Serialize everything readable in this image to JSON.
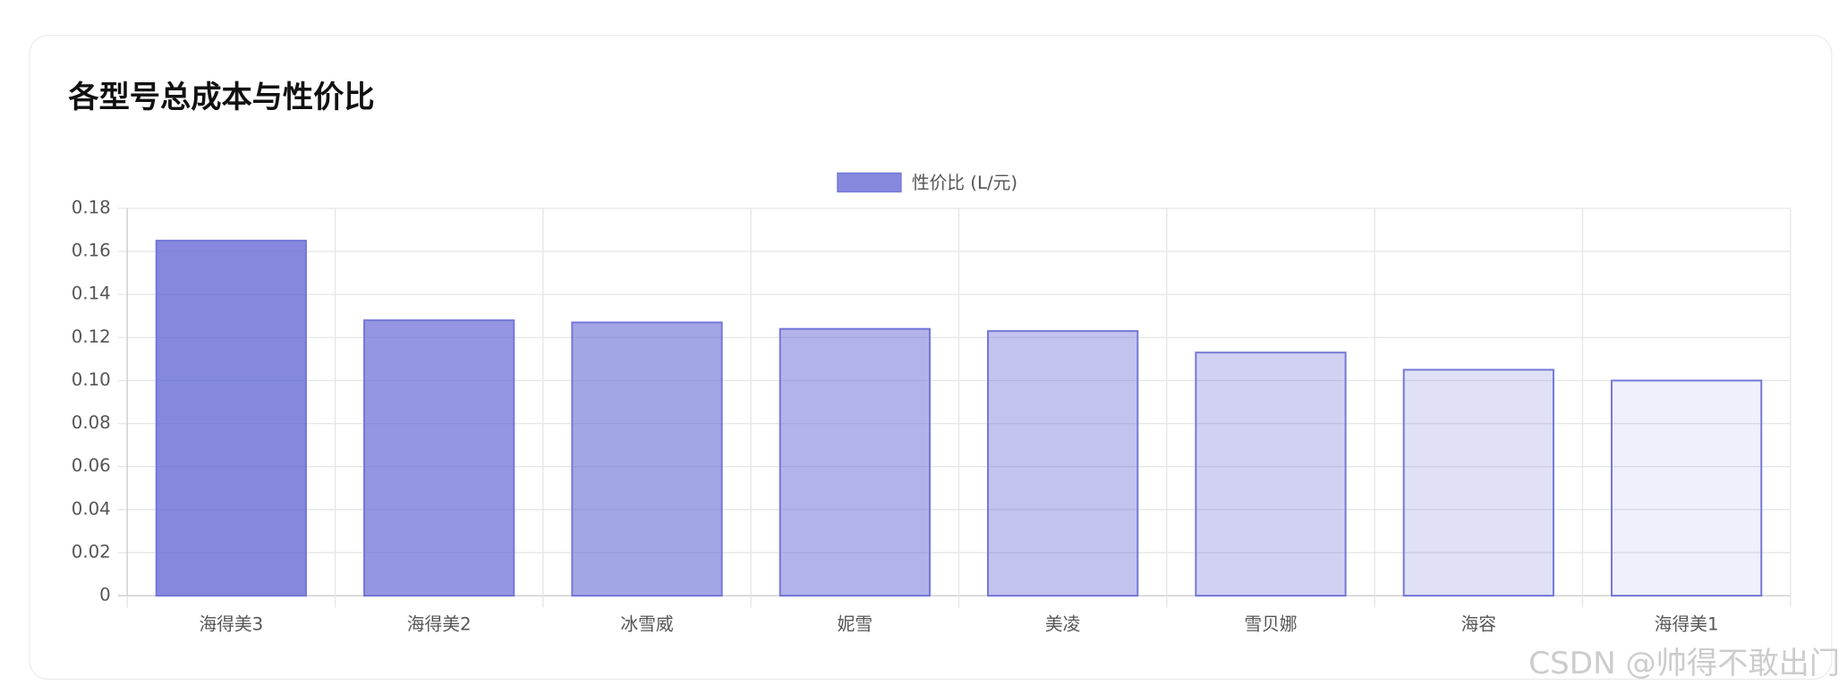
{
  "chart_data": {
    "type": "bar",
    "title": "各型号总成本与性价比",
    "categories": [
      "海得美3",
      "海得美2",
      "冰雪威",
      "妮雪",
      "美凌",
      "雪贝娜",
      "海容",
      "海得美1"
    ],
    "series": [
      {
        "name": "性价比 (L/元)",
        "values": [
          0.165,
          0.128,
          0.127,
          0.124,
          0.123,
          0.113,
          0.105,
          0.1
        ],
        "colors": [
          "rgba(102,106,212,0.8)",
          "rgba(102,106,212,0.7)",
          "rgba(102,106,212,0.6)",
          "rgba(102,106,212,0.5)",
          "rgba(102,106,212,0.4)",
          "rgba(102,106,212,0.3)",
          "rgba(102,106,212,0.2)",
          "rgba(102,106,212,0.1)"
        ],
        "border_color": "#7377d8"
      }
    ],
    "ylim": [
      0,
      0.18
    ],
    "yticks": [
      0,
      0.02,
      0.04,
      0.06,
      0.08,
      {
        "value": 0.1,
        "label": "0.10"
      },
      0.12,
      0.14,
      0.16,
      0.18
    ],
    "grid": true,
    "legend": "top"
  },
  "watermark": "CSDN @帅得不敢出门"
}
